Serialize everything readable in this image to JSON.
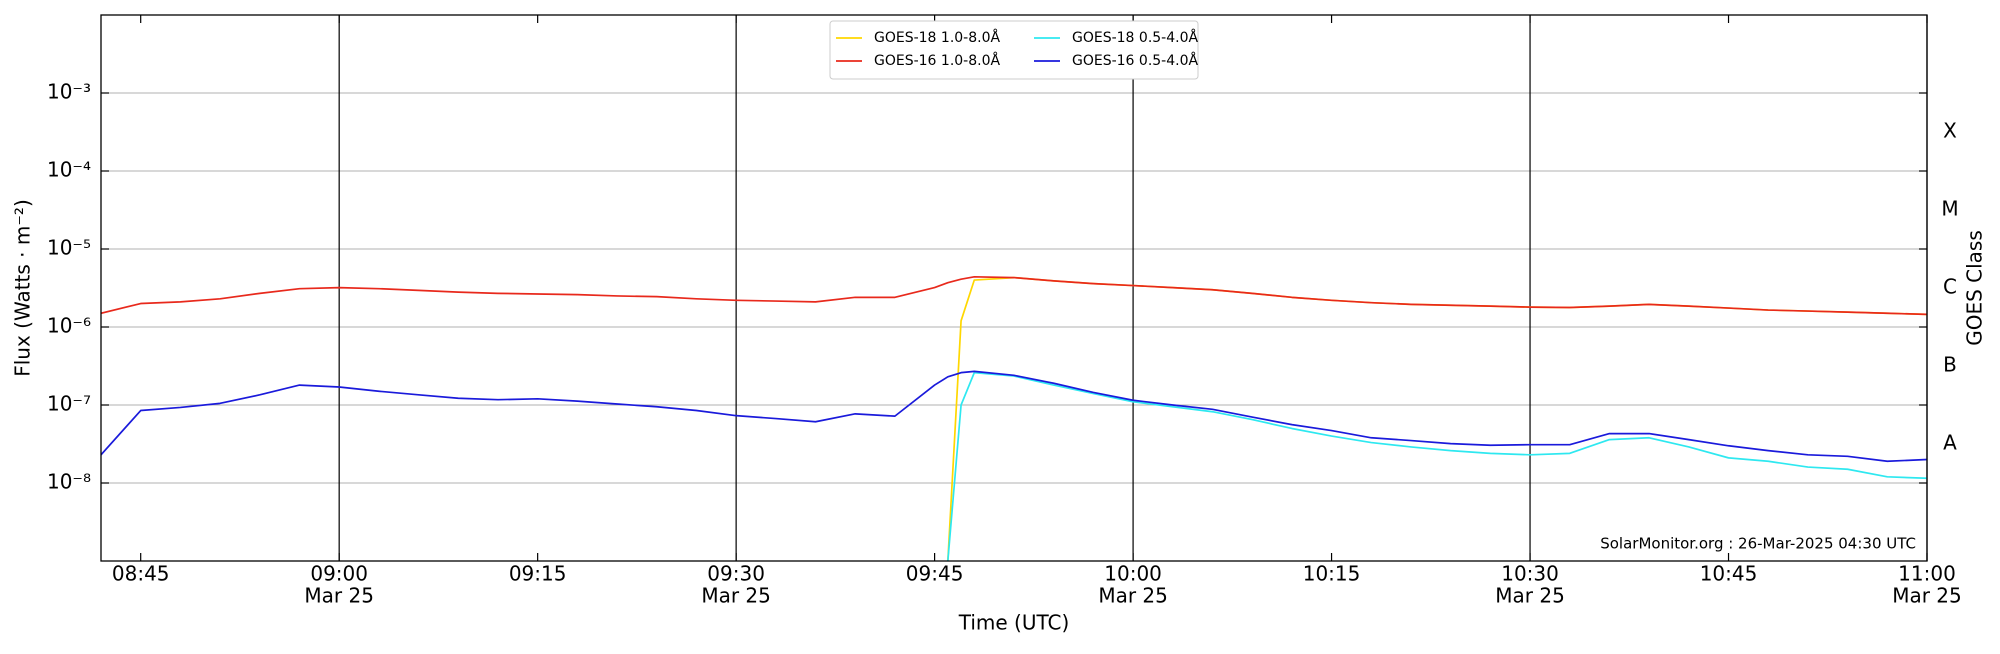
{
  "chart_data": {
    "type": "line",
    "y_label": "Flux (Watts · m⁻²)",
    "y2_label": "GOES Class",
    "x_label": "Time (UTC)",
    "annotation": "SolarMonitor.org : 26-Mar-2025 04:30 UTC",
    "log_y": true,
    "grid": true,
    "legend": "upper center",
    "xlim": [
      "08:42",
      "11:00"
    ],
    "xticks": [
      {
        "value": "08:45",
        "label": "08:45"
      },
      {
        "value": "09:00",
        "label": "09:00",
        "date": "Mar 25"
      },
      {
        "value": "09:15",
        "label": "09:15"
      },
      {
        "value": "09:30",
        "label": "09:30",
        "date": "Mar 25"
      },
      {
        "value": "09:45",
        "label": "09:45"
      },
      {
        "value": "10:00",
        "label": "10:00",
        "date": "Mar 25"
      },
      {
        "value": "10:15",
        "label": "10:15"
      },
      {
        "value": "10:30",
        "label": "10:30",
        "date": "Mar 25"
      },
      {
        "value": "10:45",
        "label": "10:45"
      },
      {
        "value": "11:00",
        "label": "11:00",
        "date": "Mar 25"
      }
    ],
    "ylim": [
      1e-09,
      0.01
    ],
    "yticks": [
      {
        "value": 1e-08,
        "label": "10⁻⁸"
      },
      {
        "value": 1e-07,
        "label": "10⁻⁷"
      },
      {
        "value": 1e-06,
        "label": "10⁻⁶"
      },
      {
        "value": 1e-05,
        "label": "10⁻⁵"
      },
      {
        "value": 0.0001,
        "label": "10⁻⁴"
      },
      {
        "value": 0.001,
        "label": "10⁻³"
      }
    ],
    "y2lim": [
      1e-09,
      0.01
    ],
    "y2ticks": [
      {
        "value": 3.16e-08,
        "label": "A"
      },
      {
        "value": 3.16e-07,
        "label": "B"
      },
      {
        "value": 3.16e-06,
        "label": "C"
      },
      {
        "value": 3.16e-05,
        "label": "M"
      },
      {
        "value": 0.000316,
        "label": "X"
      }
    ],
    "x": [
      "08:42",
      "08:45",
      "08:48",
      "08:51",
      "08:54",
      "08:57",
      "09:00",
      "09:03",
      "09:06",
      "09:09",
      "09:12",
      "09:15",
      "09:18",
      "09:21",
      "09:24",
      "09:27",
      "09:30",
      "09:33",
      "09:36",
      "09:39",
      "09:42",
      "09:45",
      "09:46",
      "09:47",
      "09:48",
      "09:51",
      "09:54",
      "09:57",
      "10:00",
      "10:03",
      "10:06",
      "10:09",
      "10:12",
      "10:15",
      "10:18",
      "10:21",
      "10:24",
      "10:27",
      "10:30",
      "10:33",
      "10:36",
      "10:39",
      "10:42",
      "10:45",
      "10:48",
      "10:51",
      "10:54",
      "10:57",
      "11:00"
    ],
    "series": [
      {
        "name": "GOES-18 1.0-8.0Å",
        "color": "#ffd700",
        "values": [
          null,
          null,
          null,
          null,
          null,
          null,
          null,
          null,
          null,
          null,
          null,
          null,
          null,
          null,
          null,
          null,
          null,
          null,
          null,
          null,
          null,
          null,
          1e-09,
          1.2e-06,
          4e-06,
          4.3e-06,
          3.9e-06,
          3.6e-06,
          3.4e-06,
          3.2e-06,
          3e-06,
          2.7e-06,
          2.4e-06,
          2.2e-06,
          2.05e-06,
          1.95e-06,
          1.9e-06,
          1.85e-06,
          1.8e-06,
          1.78e-06,
          1.85e-06,
          1.95e-06,
          1.85e-06,
          1.75e-06,
          1.65e-06,
          1.6e-06,
          1.55e-06,
          1.5e-06,
          1.45e-06
        ]
      },
      {
        "name": "GOES-16 1.0-8.0Å",
        "color": "#e8291c",
        "values": [
          1.5e-06,
          2e-06,
          2.1e-06,
          2.3e-06,
          2.7e-06,
          3.1e-06,
          3.2e-06,
          3.1e-06,
          2.95e-06,
          2.8e-06,
          2.7e-06,
          2.65e-06,
          2.6e-06,
          2.5e-06,
          2.45e-06,
          2.3e-06,
          2.2e-06,
          2.15e-06,
          2.1e-06,
          2.4e-06,
          2.4e-06,
          3.2e-06,
          3.7e-06,
          4.1e-06,
          4.4e-06,
          4.3e-06,
          3.9e-06,
          3.6e-06,
          3.4e-06,
          3.2e-06,
          3e-06,
          2.7e-06,
          2.4e-06,
          2.2e-06,
          2.05e-06,
          1.95e-06,
          1.9e-06,
          1.85e-06,
          1.8e-06,
          1.78e-06,
          1.85e-06,
          1.95e-06,
          1.85e-06,
          1.75e-06,
          1.65e-06,
          1.6e-06,
          1.55e-06,
          1.5e-06,
          1.45e-06
        ]
      },
      {
        "name": "GOES-18 0.5-4.0Å",
        "color": "#2ee8f0",
        "values": [
          null,
          null,
          null,
          null,
          null,
          null,
          null,
          null,
          null,
          null,
          null,
          null,
          null,
          null,
          null,
          null,
          null,
          null,
          null,
          null,
          null,
          null,
          1e-09,
          1e-07,
          2.6e-07,
          2.35e-07,
          1.8e-07,
          1.4e-07,
          1.1e-07,
          9.5e-08,
          8.2e-08,
          6.5e-08,
          5e-08,
          4e-08,
          3.3e-08,
          2.9e-08,
          2.6e-08,
          2.4e-08,
          2.3e-08,
          2.4e-08,
          3.6e-08,
          3.8e-08,
          2.9e-08,
          2.1e-08,
          1.9e-08,
          1.6e-08,
          1.5e-08,
          1.2e-08,
          1.15e-08
        ]
      },
      {
        "name": "GOES-16 0.5-4.0Å",
        "color": "#1a1adb",
        "values": [
          2.3e-08,
          8.5e-08,
          9.3e-08,
          1.05e-07,
          1.35e-07,
          1.8e-07,
          1.7e-07,
          1.5e-07,
          1.35e-07,
          1.22e-07,
          1.17e-07,
          1.2e-07,
          1.12e-07,
          1.03e-07,
          9.5e-08,
          8.5e-08,
          7.3e-08,
          6.7e-08,
          6.1e-08,
          7.7e-08,
          7.2e-08,
          1.8e-07,
          2.3e-07,
          2.6e-07,
          2.7e-07,
          2.4e-07,
          1.9e-07,
          1.45e-07,
          1.15e-07,
          1e-07,
          8.8e-08,
          7e-08,
          5.6e-08,
          4.7e-08,
          3.8e-08,
          3.5e-08,
          3.2e-08,
          3.05e-08,
          3.1e-08,
          3.1e-08,
          4.3e-08,
          4.3e-08,
          3.6e-08,
          3e-08,
          2.6e-08,
          2.3e-08,
          2.2e-08,
          1.9e-08,
          2e-08
        ]
      }
    ]
  }
}
